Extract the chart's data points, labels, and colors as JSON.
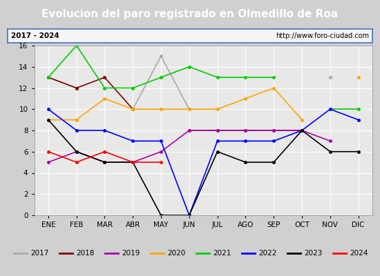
{
  "title": "Evolucion del paro registrado en Olmedillo de Roa",
  "subtitle_left": "2017 - 2024",
  "subtitle_right": "http://www.foro-ciudad.com",
  "months": [
    "ENE",
    "FEB",
    "MAR",
    "ABR",
    "MAY",
    "JUN",
    "JUL",
    "AGO",
    "SEP",
    "OCT",
    "NOV",
    "DIC"
  ],
  "ylim": [
    0,
    16
  ],
  "yticks": [
    0,
    2,
    4,
    6,
    8,
    10,
    12,
    14,
    16
  ],
  "series": {
    "2017": {
      "values": [
        13,
        12,
        null,
        10,
        15,
        10,
        null,
        null,
        null,
        null,
        13,
        null
      ],
      "color": "#aaaaaa"
    },
    "2018": {
      "values": [
        13,
        12,
        13,
        10,
        null,
        8,
        8,
        8,
        8,
        8,
        null,
        null
      ],
      "color": "#800000"
    },
    "2019": {
      "values": [
        5,
        6,
        5,
        5,
        6,
        8,
        8,
        8,
        8,
        8,
        7,
        null
      ],
      "color": "#aa00aa"
    },
    "2020": {
      "values": [
        9,
        9,
        11,
        10,
        10,
        10,
        10,
        11,
        12,
        9,
        null,
        13
      ],
      "color": "#ffa500"
    },
    "2021": {
      "values": [
        13,
        16,
        12,
        12,
        13,
        14,
        13,
        13,
        13,
        null,
        10,
        10
      ],
      "color": "#00cc00"
    },
    "2022": {
      "values": [
        10,
        8,
        8,
        7,
        7,
        0,
        7,
        7,
        7,
        8,
        10,
        9
      ],
      "color": "#0000ff"
    },
    "2023": {
      "values": [
        9,
        6,
        5,
        5,
        0,
        0,
        6,
        5,
        5,
        8,
        6,
        6
      ],
      "color": "#000000"
    },
    "2024": {
      "values": [
        6,
        5,
        6,
        5,
        5,
        null,
        null,
        null,
        null,
        null,
        null,
        null
      ],
      "color": "#ff0000"
    }
  },
  "title_bg_color": "#4472c4",
  "title_color": "#ffffff",
  "title_fontsize": 11,
  "plot_bg_color": "#e8e8e8",
  "outer_bg_color": "#d0d0d0",
  "info_bg_color": "#f5f5f5",
  "legend_bg_color": "#f5f5f5",
  "border_color": "#4472c4",
  "grid_color": "#ffffff",
  "line_width": 1.2,
  "marker_size": 2.5
}
